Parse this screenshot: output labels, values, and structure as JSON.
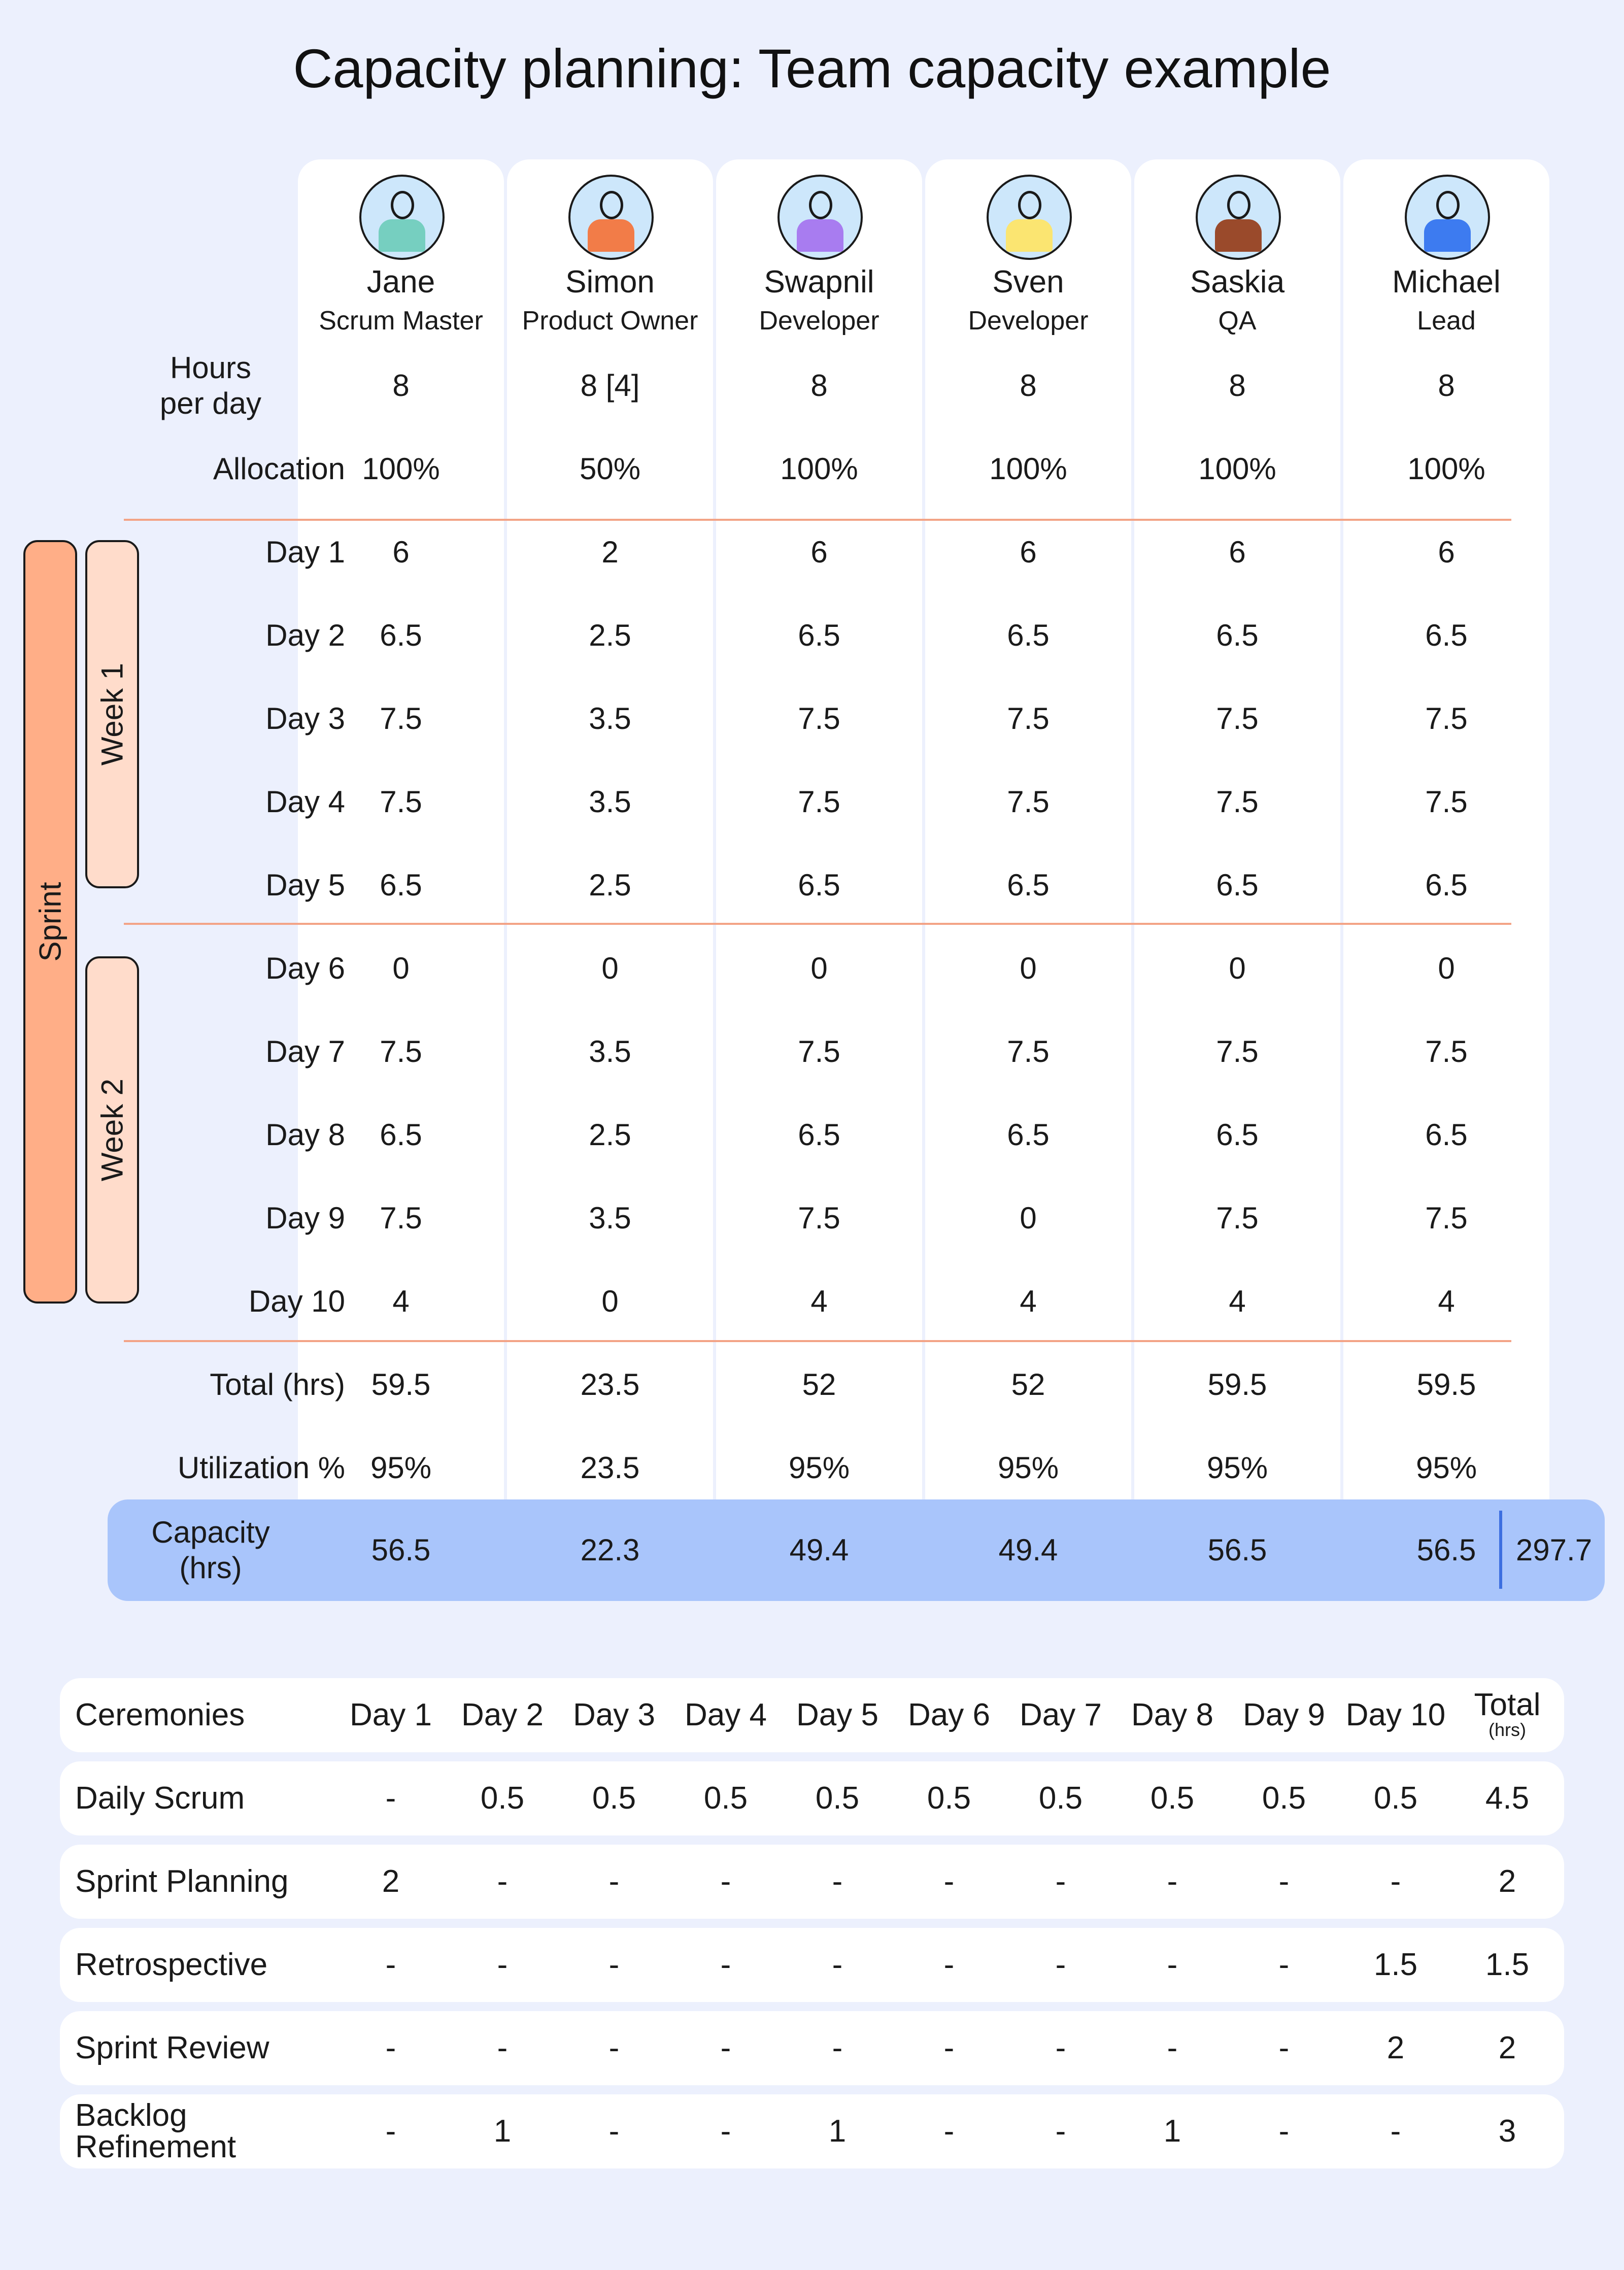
{
  "title": "Capacity planning: Team capacity example",
  "members": [
    {
      "name": "Jane",
      "role": "Scrum Master",
      "hours": "8",
      "allocation": "100%",
      "days": [
        "6",
        "6.5",
        "7.5",
        "7.5",
        "6.5",
        "0",
        "7.5",
        "6.5",
        "7.5",
        "4"
      ],
      "total": "59.5",
      "utilization": "95%",
      "capacity": "56.5",
      "color": "#76CFC0"
    },
    {
      "name": "Simon",
      "role": "Product Owner",
      "hours": "8 [4]",
      "allocation": "50%",
      "days": [
        "2",
        "2.5",
        "3.5",
        "3.5",
        "2.5",
        "0",
        "3.5",
        "2.5",
        "3.5",
        "0"
      ],
      "total": "23.5",
      "utilization": "23.5",
      "capacity": "22.3",
      "color": "#F27C48"
    },
    {
      "name": "Swapnil",
      "role": "Developer",
      "hours": "8",
      "allocation": "100%",
      "days": [
        "6",
        "6.5",
        "7.5",
        "7.5",
        "6.5",
        "0",
        "7.5",
        "6.5",
        "7.5",
        "4"
      ],
      "total": "52",
      "utilization": "95%",
      "capacity": "49.4",
      "color": "#A87CF0"
    },
    {
      "name": "Sven",
      "role": "Developer",
      "hours": "8",
      "allocation": "100%",
      "days": [
        "6",
        "6.5",
        "7.5",
        "7.5",
        "6.5",
        "0",
        "7.5",
        "6.5",
        "0",
        "4"
      ],
      "total": "52",
      "utilization": "95%",
      "capacity": "49.4",
      "color": "#FBE571"
    },
    {
      "name": "Saskia",
      "role": "QA",
      "hours": "8",
      "allocation": "100%",
      "days": [
        "6",
        "6.5",
        "7.5",
        "7.5",
        "6.5",
        "0",
        "7.5",
        "6.5",
        "7.5",
        "4"
      ],
      "total": "59.5",
      "utilization": "95%",
      "capacity": "56.5",
      "color": "#9A4A2B"
    },
    {
      "name": "Michael",
      "role": "Lead",
      "hours": "8",
      "allocation": "100%",
      "days": [
        "6",
        "6.5",
        "7.5",
        "7.5",
        "6.5",
        "0",
        "7.5",
        "6.5",
        "7.5",
        "4"
      ],
      "total": "59.5",
      "utilization": "95%",
      "capacity": "56.5",
      "color": "#3D7BF0"
    }
  ],
  "row_labels": {
    "hours_line1": "Hours",
    "hours_line2": "per day",
    "allocation": "Allocation",
    "days": [
      "Day 1",
      "Day 2",
      "Day 3",
      "Day 4",
      "Day 5",
      "Day 6",
      "Day 7",
      "Day 8",
      "Day 9",
      "Day 10"
    ],
    "total": "Total (hrs)",
    "utilization": "Utilization %",
    "capacity_line1": "Capacity",
    "capacity_line2": "(hrs)"
  },
  "groups": {
    "sprint": "Sprint",
    "week1": "Week 1",
    "week2": "Week 2"
  },
  "capacity_total": "297.7",
  "ceremonies": {
    "header": {
      "label": "Ceremonies",
      "days": [
        "Day 1",
        "Day 2",
        "Day 3",
        "Day 4",
        "Day 5",
        "Day 6",
        "Day 7",
        "Day 8",
        "Day 9",
        "Day 10"
      ],
      "total_line1": "Total",
      "total_line2": "(hrs)"
    },
    "rows": [
      {
        "label_line1": "Daily Scrum",
        "label_line2": "",
        "values": [
          "-",
          "0.5",
          "0.5",
          "0.5",
          "0.5",
          "0.5",
          "0.5",
          "0.5",
          "0.5",
          "0.5"
        ],
        "total": "4.5"
      },
      {
        "label_line1": "Sprint Planning",
        "label_line2": "",
        "values": [
          "2",
          "-",
          "-",
          "-",
          "-",
          "-",
          "-",
          "-",
          "-",
          "-"
        ],
        "total": "2"
      },
      {
        "label_line1": "Retrospective",
        "label_line2": "",
        "values": [
          "-",
          "-",
          "-",
          "-",
          "-",
          "-",
          "-",
          "-",
          "-",
          "1.5"
        ],
        "total": "1.5"
      },
      {
        "label_line1": "Sprint Review",
        "label_line2": "",
        "values": [
          "-",
          "-",
          "-",
          "-",
          "-",
          "-",
          "-",
          "-",
          "-",
          "2"
        ],
        "total": "2"
      },
      {
        "label_line1": "Backlog",
        "label_line2": "Refinement",
        "values": [
          "-",
          "1",
          "-",
          "-",
          "1",
          "-",
          "-",
          "1",
          "-",
          "-"
        ],
        "total": "3"
      }
    ]
  }
}
